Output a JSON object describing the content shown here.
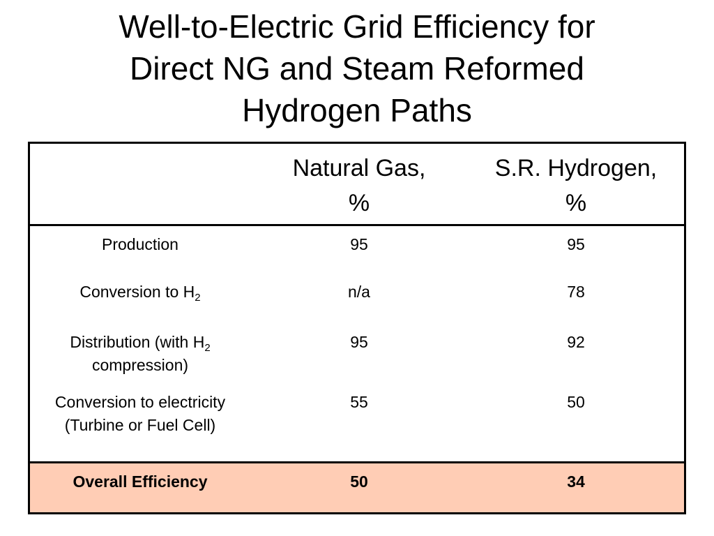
{
  "slide": {
    "title_lines": [
      "Well-to-Electric Grid Efficiency for",
      "Direct NG and Steam Reformed",
      "Hydrogen Paths"
    ]
  },
  "table": {
    "columns": [
      {
        "line1": "",
        "line2": ""
      },
      {
        "line1": "Natural Gas,",
        "line2": "%"
      },
      {
        "line1": "S.R. Hydrogen,",
        "line2": "%"
      }
    ],
    "rows": [
      {
        "label": "Production",
        "natural_gas": "95",
        "sr_hydrogen": "95"
      },
      {
        "label_pre": "Conversion to H",
        "label_sub": "2",
        "label_post": "",
        "natural_gas": "n/a",
        "sr_hydrogen": "78"
      },
      {
        "label_pre": "Distribution (with H",
        "label_sub": "2",
        "label_post": " compression)",
        "natural_gas": "95",
        "sr_hydrogen": "92"
      },
      {
        "label": "Conversion to electricity (Turbine or Fuel Cell)",
        "natural_gas": "55",
        "sr_hydrogen": "50"
      }
    ],
    "total": {
      "label": "Overall Efficiency",
      "natural_gas": "50",
      "sr_hydrogen": "34"
    },
    "colors": {
      "total_row_background": "#ffcdb5",
      "border": "#000000",
      "text": "#000000"
    }
  }
}
